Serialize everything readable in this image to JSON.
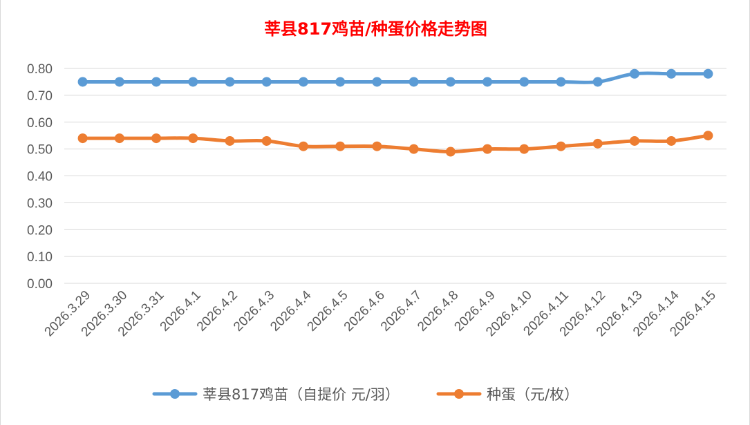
{
  "chart_data": {
    "type": "line",
    "title": "莘县817鸡苗/种蛋价格走势图",
    "categories": [
      "2026.3.29",
      "2026.3.30",
      "2026.3.31",
      "2026.4.1",
      "2026.4.2",
      "2026.4.3",
      "2026.4.4",
      "2026.4.5",
      "2026.4.6",
      "2026.4.7",
      "2026.4.8",
      "2026.4.9",
      "2026.4.10",
      "2026.4.11",
      "2026.4.12",
      "2026.4.13",
      "2026.4.14",
      "2026.4.15"
    ],
    "y_ticks": [
      "0.00",
      "0.10",
      "0.20",
      "0.30",
      "0.40",
      "0.50",
      "0.60",
      "0.70",
      "0.80"
    ],
    "ylim": [
      0,
      0.8
    ],
    "grid": true,
    "legend_position": "bottom",
    "series": [
      {
        "name": "莘县817鸡苗（自提价 元/羽）",
        "color": "#5b9bd5",
        "values": [
          0.75,
          0.75,
          0.75,
          0.75,
          0.75,
          0.75,
          0.75,
          0.75,
          0.75,
          0.75,
          0.75,
          0.75,
          0.75,
          0.75,
          0.75,
          0.78,
          0.78,
          0.78
        ]
      },
      {
        "name": "种蛋（元/枚）",
        "color": "#ed7d31",
        "values": [
          0.54,
          0.54,
          0.54,
          0.54,
          0.53,
          0.53,
          0.51,
          0.51,
          0.51,
          0.5,
          0.49,
          0.5,
          0.5,
          0.51,
          0.52,
          0.53,
          0.53,
          0.55
        ]
      }
    ]
  }
}
